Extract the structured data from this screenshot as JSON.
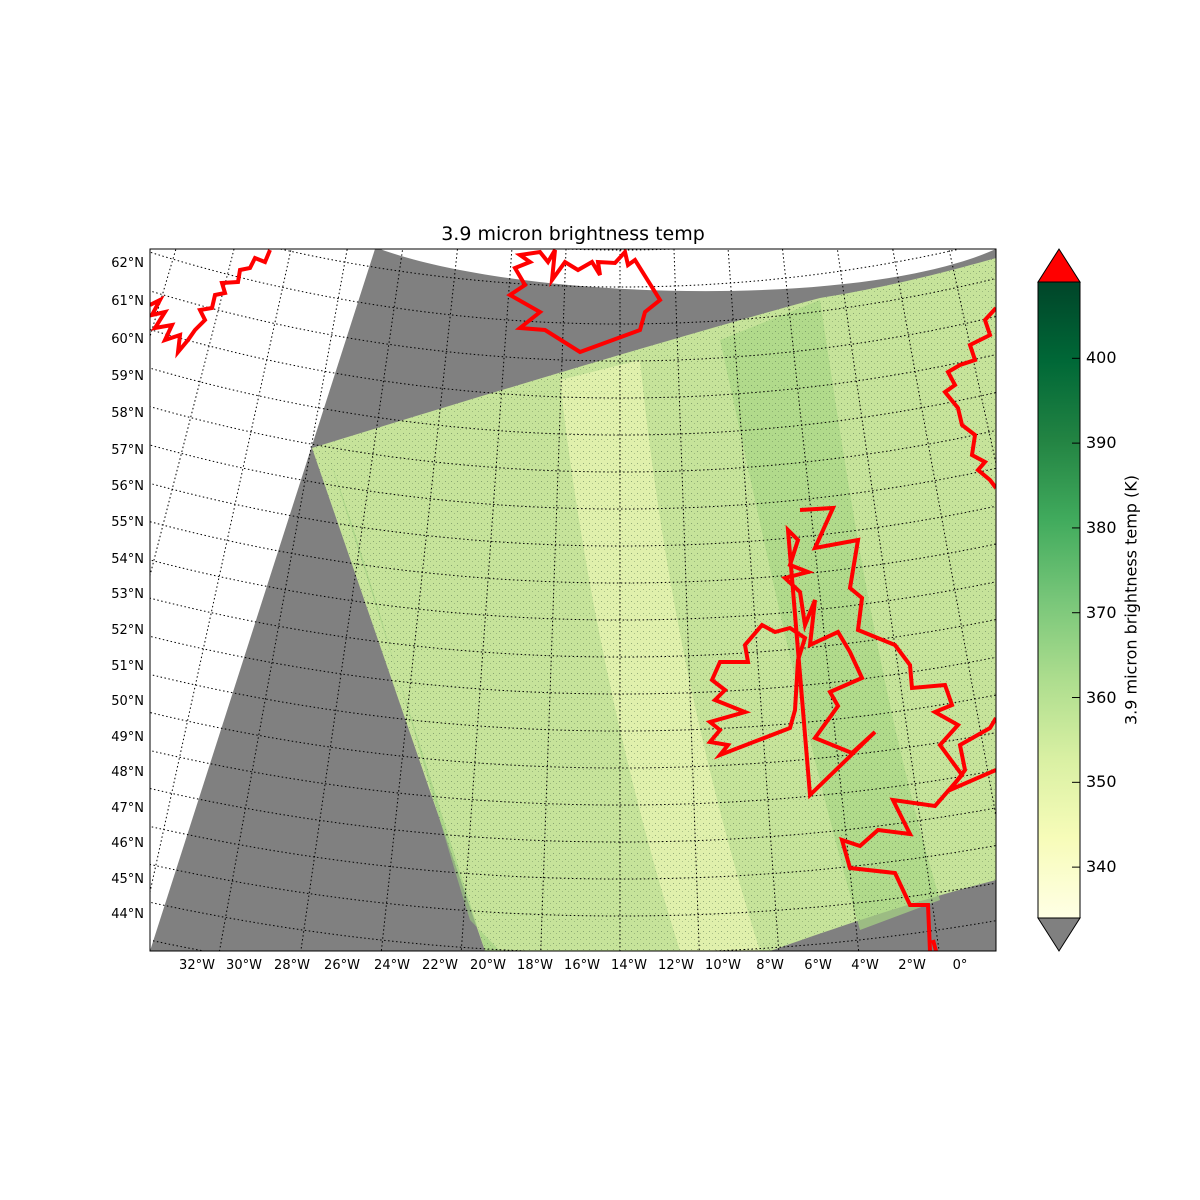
{
  "title": "3.9 micron brightness temp",
  "colorbar": {
    "label": "3.9 micron brightness temp (K)",
    "ticks": [
      "340",
      "350",
      "360",
      "370",
      "380",
      "390",
      "400"
    ],
    "tick_values": [
      340,
      350,
      360,
      370,
      380,
      390,
      400
    ],
    "range": [
      334,
      409
    ],
    "extend": "both",
    "over_color": "#ff0000",
    "under_color": "#808080",
    "colormap": [
      "#ffffe5",
      "#f7fcb9",
      "#d9f0a3",
      "#addd8e",
      "#78c679",
      "#41ab5d",
      "#238443",
      "#006837",
      "#004529"
    ]
  },
  "map": {
    "projection": "conic",
    "lon_range": [
      -34,
      1.5
    ],
    "lat_range": [
      43,
      62.5
    ],
    "coastline_color": "#ff0000",
    "missing_color": "#808080",
    "gridlines": "dotted",
    "lat_labels": [
      "62°N",
      "61°N",
      "60°N",
      "59°N",
      "58°N",
      "57°N",
      "56°N",
      "55°N",
      "54°N",
      "53°N",
      "52°N",
      "51°N",
      "50°N",
      "49°N",
      "48°N",
      "47°N",
      "46°N",
      "45°N",
      "44°N"
    ],
    "lon_labels": [
      "32°W",
      "30°W",
      "28°W",
      "26°W",
      "24°W",
      "22°W",
      "20°W",
      "18°W",
      "16°W",
      "14°W",
      "12°W",
      "10°W",
      "8°W",
      "6°W",
      "4°W",
      "2°W",
      "0°"
    ],
    "regions": [
      "Iceland",
      "Greenland",
      "Ireland",
      "Great Britain",
      "Norway",
      "France"
    ]
  }
}
